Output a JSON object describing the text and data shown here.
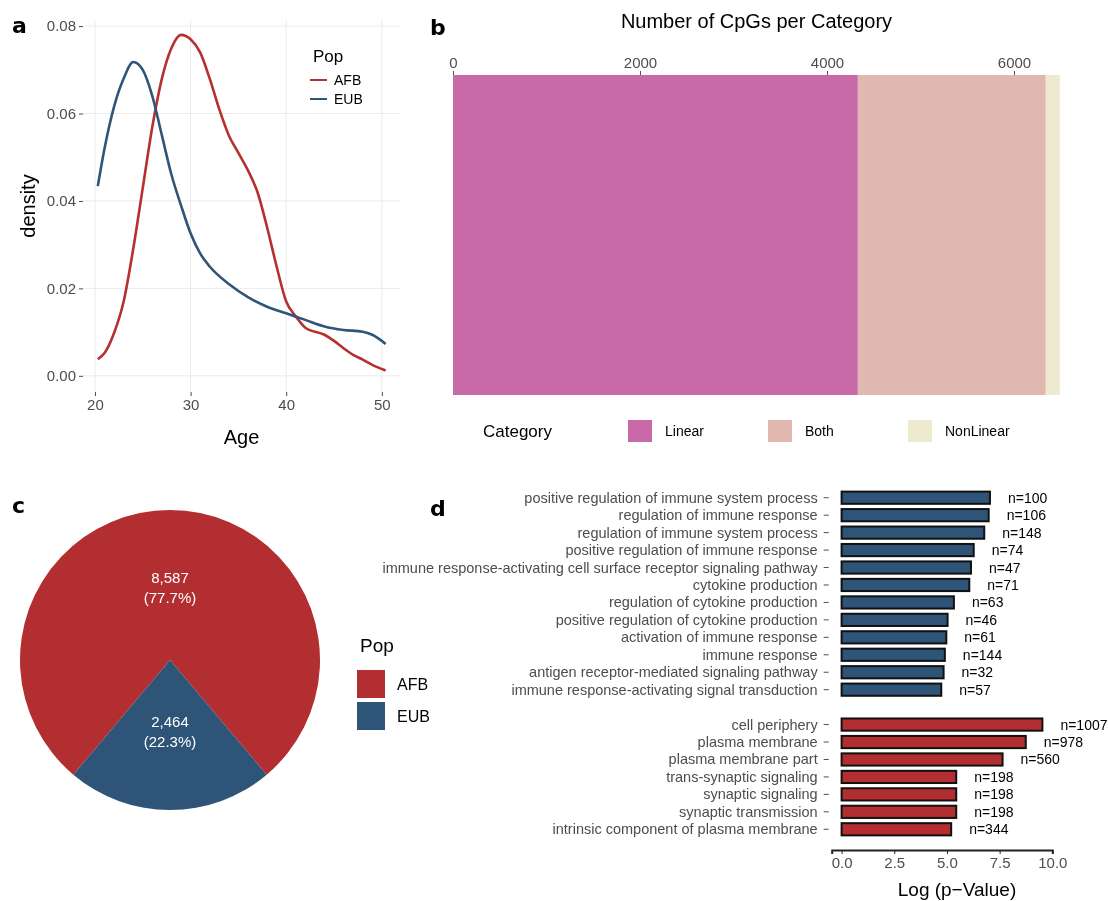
{
  "chart_data": [
    {
      "type": "line",
      "annotations": [
        "a"
      ],
      "xlabel": "Age",
      "ylabel": "density",
      "legend_title": "Pop",
      "legend": "top right",
      "grid": true,
      "xlim": [
        18.75,
        51.9
      ],
      "ylim": [
        -0.0037,
        0.0814
      ],
      "xticks": [
        20,
        30,
        40,
        50
      ],
      "yticks": [
        {
          "value": 0,
          "label": "0.00"
        },
        {
          "value": 0.02,
          "label": "0.02"
        },
        {
          "value": 0.04,
          "label": "0.04"
        },
        {
          "value": 0.06,
          "label": "0.06"
        },
        {
          "value": 0.08,
          "label": "0.08"
        }
      ],
      "series": [
        {
          "name": "AFB",
          "color": "#b5302f",
          "x": [
            20.3,
            21,
            22,
            23,
            24,
            25,
            26,
            27,
            28,
            29,
            30,
            31,
            32,
            33,
            34,
            35,
            36,
            37,
            38,
            39,
            40,
            41,
            42,
            44,
            45,
            46,
            47,
            48,
            49,
            50.4
          ],
          "values": [
            0.0038,
            0.0052,
            0.0098,
            0.017,
            0.029,
            0.043,
            0.057,
            0.068,
            0.075,
            0.078,
            0.077,
            0.074,
            0.068,
            0.061,
            0.055,
            0.051,
            0.047,
            0.042,
            0.034,
            0.025,
            0.017,
            0.0136,
            0.011,
            0.0094,
            0.008,
            0.0063,
            0.0048,
            0.0037,
            0.0025,
            0.0012
          ]
        },
        {
          "name": "EUB",
          "color": "#2f5578",
          "x": [
            20.3,
            21,
            22,
            23,
            24,
            25,
            26,
            27,
            28,
            29,
            30,
            31,
            32,
            34,
            36,
            38,
            40,
            42,
            44,
            46,
            48,
            49,
            50.4
          ],
          "values": [
            0.0434,
            0.052,
            0.0616,
            0.068,
            0.0718,
            0.07,
            0.064,
            0.055,
            0.046,
            0.039,
            0.0326,
            0.028,
            0.025,
            0.021,
            0.018,
            0.0158,
            0.0143,
            0.0128,
            0.0113,
            0.0105,
            0.0101,
            0.0094,
            0.0073
          ]
        }
      ]
    },
    {
      "type": "bar",
      "orientation": "horizontal",
      "stacked": true,
      "title": "Number of CpGs per Category",
      "annotations": [
        "b"
      ],
      "legend_title": "Category",
      "legend": "bottom",
      "categories": [
        null
      ],
      "xlim": [
        0,
        6492
      ],
      "xticks": [
        0,
        2000,
        4000,
        6000
      ],
      "series": [
        {
          "name": "Linear",
          "color": "#c86aa8",
          "values": [
            4330
          ]
        },
        {
          "name": "Both",
          "color": "#e0b8b0",
          "values": [
            2010
          ]
        },
        {
          "name": "NonLinear",
          "color": "#eeead0",
          "values": [
            150
          ]
        }
      ]
    },
    {
      "type": "pie",
      "annotations": [
        "c"
      ],
      "legend_title": "Pop",
      "legend": "right",
      "categories": [
        "AFB",
        "EUB"
      ],
      "values": [
        8587,
        2464
      ],
      "colors": [
        "#b22e30",
        "#2e5477"
      ],
      "value_labels": [
        "8,587\n(77.7%)",
        "2,464\n(22.3%)"
      ]
    },
    {
      "type": "bar",
      "orientation": "horizontal",
      "annotations": [
        "d",
        {
          "text": "n=100",
          "x": 7.04,
          "y": "positive regulation of immune system process"
        },
        {
          "text": "n=106",
          "x": 6.98,
          "y": "regulation of immune response"
        },
        {
          "text": "n=148",
          "x": 6.77,
          "y": "regulation of immune system process"
        },
        {
          "text": "n=74",
          "x": 6.27,
          "y": "positive regulation of immune response"
        },
        {
          "text": "n=47",
          "x": 6.14,
          "y": "immune response-activating cell surface receptor signaling pathway"
        },
        {
          "text": "n=71",
          "x": 6.06,
          "y": "cytokine production"
        },
        {
          "text": "n=63",
          "x": 5.33,
          "y": "regulation of cytokine production"
        },
        {
          "text": "n=46",
          "x": 5.03,
          "y": "positive regulation of cytokine production"
        },
        {
          "text": "n=61",
          "x": 4.97,
          "y": "activation of immune response"
        },
        {
          "text": "n=144",
          "x": 4.9,
          "y": "immune response"
        },
        {
          "text": "n=32",
          "x": 4.84,
          "y": "antigen receptor-mediated signaling pathway"
        },
        {
          "text": "n=57",
          "x": 4.73,
          "y": "immune response-activating signal transduction"
        },
        {
          "text": "n=1007",
          "x": 9.53,
          "y": "cell periphery"
        },
        {
          "text": "n=978",
          "x": 8.74,
          "y": "plasma membrane"
        },
        {
          "text": "n=560",
          "x": 7.64,
          "y": "plasma membrane part"
        },
        {
          "text": "n=198",
          "x": 5.44,
          "y": "trans-synaptic signaling"
        },
        {
          "text": "n=198",
          "x": 5.44,
          "y": "synaptic signaling"
        },
        {
          "text": "n=198",
          "x": 5.44,
          "y": "synaptic transmission"
        },
        {
          "text": "n=344",
          "x": 5.2,
          "y": "intrinsic component of plasma membrane"
        }
      ],
      "xlabel": "Log (p−Value)",
      "xlim": [
        -0.47,
        10.0
      ],
      "xticks": [
        {
          "value": 0,
          "label": "0.0"
        },
        {
          "value": 2.5,
          "label": "2.5"
        },
        {
          "value": 5,
          "label": "5.0"
        },
        {
          "value": 7.5,
          "label": "7.5"
        },
        {
          "value": 10,
          "label": "10.0"
        }
      ],
      "categories": [
        "positive regulation of immune system process",
        "regulation of immune response",
        "regulation of immune system process",
        "positive regulation of immune response",
        "immune response-activating cell surface receptor signaling pathway",
        "cytokine production",
        "regulation of cytokine production",
        "positive regulation of cytokine production",
        "activation of immune response",
        "immune response",
        "antigen receptor-mediated signaling pathway",
        "immune response-activating signal transduction",
        null,
        "cell periphery",
        "plasma membrane",
        "plasma membrane part",
        "trans-synaptic signaling",
        "synaptic signaling",
        "synaptic transmission",
        "intrinsic component of plasma membrane"
      ],
      "values": [
        7.04,
        6.98,
        6.77,
        6.27,
        6.14,
        6.06,
        5.33,
        5.03,
        4.97,
        4.9,
        4.84,
        4.73,
        null,
        9.53,
        8.74,
        7.64,
        5.44,
        5.44,
        5.44,
        5.2
      ],
      "colors": [
        "#2e5477",
        "#2e5477",
        "#2e5477",
        "#2e5477",
        "#2e5477",
        "#2e5477",
        "#2e5477",
        "#2e5477",
        "#2e5477",
        "#2e5477",
        "#2e5477",
        "#2e5477",
        null,
        "#b22e30",
        "#b22e30",
        "#b22e30",
        "#b22e30",
        "#b22e30",
        "#b22e30",
        "#b22e30"
      ]
    }
  ]
}
